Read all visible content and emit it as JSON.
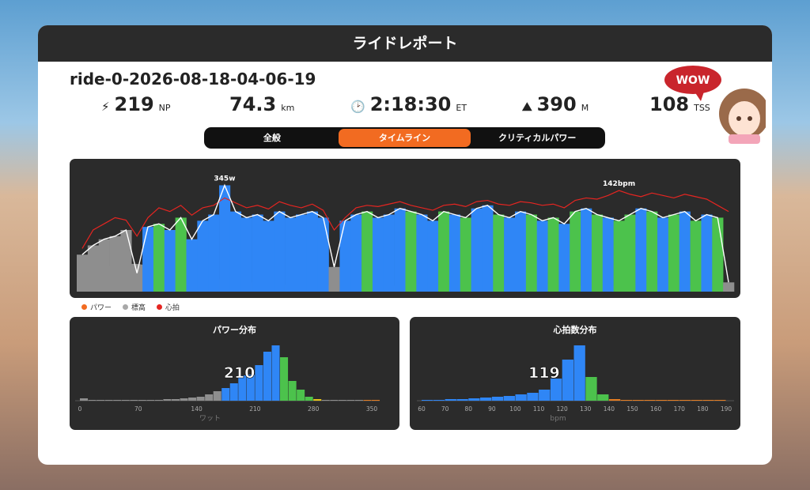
{
  "header": {
    "title": "ライドレポート"
  },
  "ride": {
    "name": "ride-0-2026-08-18-04-06-19",
    "stats": [
      {
        "value": 219,
        "unit": "NP"
      },
      {
        "value": 74.3,
        "unit": "km"
      },
      {
        "value": "2:18:30",
        "unit": "ET"
      },
      {
        "value": 390,
        "unit": "M"
      },
      {
        "value": 108,
        "unit": "TSS"
      }
    ]
  },
  "badge": {
    "text": "WOW"
  },
  "tabs": {
    "items": [
      "全般",
      "タイムライン",
      "クリティカルパワー"
    ],
    "active": 1
  },
  "charts": {
    "timeline": {
      "type": "bar",
      "ylim": [
        0,
        400
      ],
      "y2lim": [
        60,
        160
      ],
      "series": [
        {
          "name": "パワー",
          "color": "#f26b21",
          "line_color": "#ffffff",
          "peak_label": "345w",
          "peak_value": 345,
          "values": [
            120,
            150,
            170,
            180,
            200,
            60,
            210,
            220,
            200,
            240,
            170,
            230,
            250,
            345,
            260,
            240,
            250,
            230,
            260,
            240,
            250,
            260,
            240,
            80,
            230,
            250,
            260,
            240,
            250,
            270,
            260,
            250,
            230,
            260,
            250,
            240,
            270,
            280,
            250,
            240,
            260,
            250,
            230,
            240,
            220,
            260,
            270,
            250,
            240,
            230,
            250,
            270,
            260,
            240,
            250,
            260,
            230,
            250,
            240,
            30
          ],
          "colors": [
            "#8e8e8e",
            "#8e8e8e",
            "#8e8e8e",
            "#8e8e8e",
            "#8e8e8e",
            "#8e8e8e",
            "#2f86f6",
            "#4cc24c",
            "#2f86f6",
            "#4cc24c",
            "#2f86f6",
            "#2f86f6",
            "#2f86f6",
            "#2f86f6",
            "#2f86f6",
            "#2f86f6",
            "#2f86f6",
            "#2f86f6",
            "#2f86f6",
            "#2f86f6",
            "#2f86f6",
            "#2f86f6",
            "#2f86f6",
            "#8e8e8e",
            "#2f86f6",
            "#2f86f6",
            "#4cc24c",
            "#2f86f6",
            "#2f86f6",
            "#2f86f6",
            "#4cc24c",
            "#2f86f6",
            "#2f86f6",
            "#4cc24c",
            "#2f86f6",
            "#4cc24c",
            "#2f86f6",
            "#2f86f6",
            "#4cc24c",
            "#2f86f6",
            "#2f86f6",
            "#4cc24c",
            "#2f86f6",
            "#4cc24c",
            "#2f86f6",
            "#4cc24c",
            "#2f86f6",
            "#4cc24c",
            "#2f86f6",
            "#4cc24c",
            "#4cc24c",
            "#2f86f6",
            "#4cc24c",
            "#2f86f6",
            "#4cc24c",
            "#2f86f6",
            "#4cc24c",
            "#2f86f6",
            "#4cc24c",
            "#8e8e8e"
          ]
        },
        {
          "name": "標高",
          "color": "#a8a8a8",
          "values": [
            60,
            70,
            80,
            85,
            90,
            90,
            85,
            75,
            65,
            55,
            50,
            45,
            40,
            40,
            35,
            30,
            30,
            25,
            25,
            20,
            20,
            20,
            20,
            20,
            20,
            20,
            20,
            20,
            20,
            20,
            20,
            20,
            20,
            20,
            20,
            20,
            20,
            20,
            20,
            20,
            20,
            20,
            20,
            20,
            20,
            20,
            20,
            20,
            20,
            20,
            20,
            20,
            20,
            20,
            20,
            20,
            20,
            20,
            20,
            20
          ]
        },
        {
          "name": "心拍",
          "color": "#e52521",
          "axis": "y2",
          "peak_label": "142bpm",
          "peak_value": 142,
          "values": [
            95,
            110,
            115,
            120,
            118,
            105,
            120,
            128,
            125,
            130,
            122,
            128,
            130,
            136,
            132,
            128,
            130,
            127,
            133,
            130,
            128,
            131,
            126,
            110,
            120,
            128,
            130,
            129,
            131,
            133,
            130,
            128,
            126,
            130,
            131,
            129,
            133,
            134,
            131,
            130,
            133,
            132,
            130,
            131,
            128,
            134,
            136,
            135,
            138,
            142,
            139,
            137,
            140,
            138,
            136,
            139,
            137,
            135,
            130,
            125
          ]
        }
      ]
    },
    "power_distribution": {
      "type": "histogram",
      "title": "パワー分布",
      "x_label": "ワット",
      "marker": 210,
      "bins": [
        0,
        10,
        20,
        30,
        40,
        50,
        60,
        70,
        80,
        90,
        100,
        110,
        120,
        130,
        140,
        150,
        160,
        170,
        180,
        190,
        200,
        210,
        220,
        230,
        240,
        250,
        260,
        270,
        280,
        290,
        300,
        310,
        320,
        330,
        340,
        350,
        360
      ],
      "values": [
        3,
        1,
        1,
        1,
        0,
        1,
        1,
        1,
        1,
        1,
        2,
        2,
        3,
        4,
        5,
        8,
        12,
        16,
        22,
        32,
        33,
        45,
        62,
        70,
        55,
        25,
        14,
        5,
        2,
        0,
        0,
        0,
        0,
        0,
        1,
        1
      ],
      "colors": [
        "#8e8e8e",
        "#8e8e8e",
        "#8e8e8e",
        "#8e8e8e",
        "#8e8e8e",
        "#8e8e8e",
        "#8e8e8e",
        "#8e8e8e",
        "#8e8e8e",
        "#8e8e8e",
        "#8e8e8e",
        "#8e8e8e",
        "#8e8e8e",
        "#8e8e8e",
        "#8e8e8e",
        "#8e8e8e",
        "#8e8e8e",
        "#2f86f6",
        "#2f86f6",
        "#2f86f6",
        "#2f86f6",
        "#2f86f6",
        "#2f86f6",
        "#2f86f6",
        "#4cc24c",
        "#4cc24c",
        "#4cc24c",
        "#4cc24c",
        "#e8c21c",
        "#8e8e8e",
        "#8e8e8e",
        "#8e8e8e",
        "#8e8e8e",
        "#8e8e8e",
        "#e67e22",
        "#e67e22"
      ],
      "xlim": [
        0,
        350
      ],
      "xticks": [
        0,
        70,
        140,
        210,
        280,
        350
      ],
      "ylim": [
        0,
        70
      ]
    },
    "hr_distribution": {
      "type": "histogram",
      "title": "心拍数分布",
      "x_label": "bpm",
      "marker": 119,
      "bins": [
        60,
        65,
        70,
        75,
        80,
        85,
        90,
        95,
        100,
        105,
        110,
        115,
        120,
        125,
        130,
        135,
        140,
        145,
        150,
        155,
        160,
        165,
        170,
        175,
        180,
        185,
        190
      ],
      "values": [
        0,
        1,
        2,
        2,
        3,
        4,
        5,
        6,
        8,
        10,
        14,
        28,
        52,
        70,
        30,
        8,
        2,
        1,
        1,
        0,
        0,
        0,
        1,
        0,
        0,
        1
      ],
      "colors": [
        "#2f86f6",
        "#2f86f6",
        "#2f86f6",
        "#2f86f6",
        "#2f86f6",
        "#2f86f6",
        "#2f86f6",
        "#2f86f6",
        "#2f86f6",
        "#2f86f6",
        "#2f86f6",
        "#2f86f6",
        "#2f86f6",
        "#2f86f6",
        "#4cc24c",
        "#4cc24c",
        "#e67e22",
        "#e67e22",
        "#e67e22",
        "#e67e22",
        "#e67e22",
        "#e67e22",
        "#e67e22",
        "#e67e22",
        "#e67e22",
        "#e67e22"
      ],
      "xlim": [
        60,
        190
      ],
      "xticks": [
        60,
        70,
        80,
        90,
        100,
        110,
        120,
        130,
        140,
        150,
        160,
        170,
        180,
        190
      ],
      "ylim": [
        0,
        70
      ]
    }
  }
}
